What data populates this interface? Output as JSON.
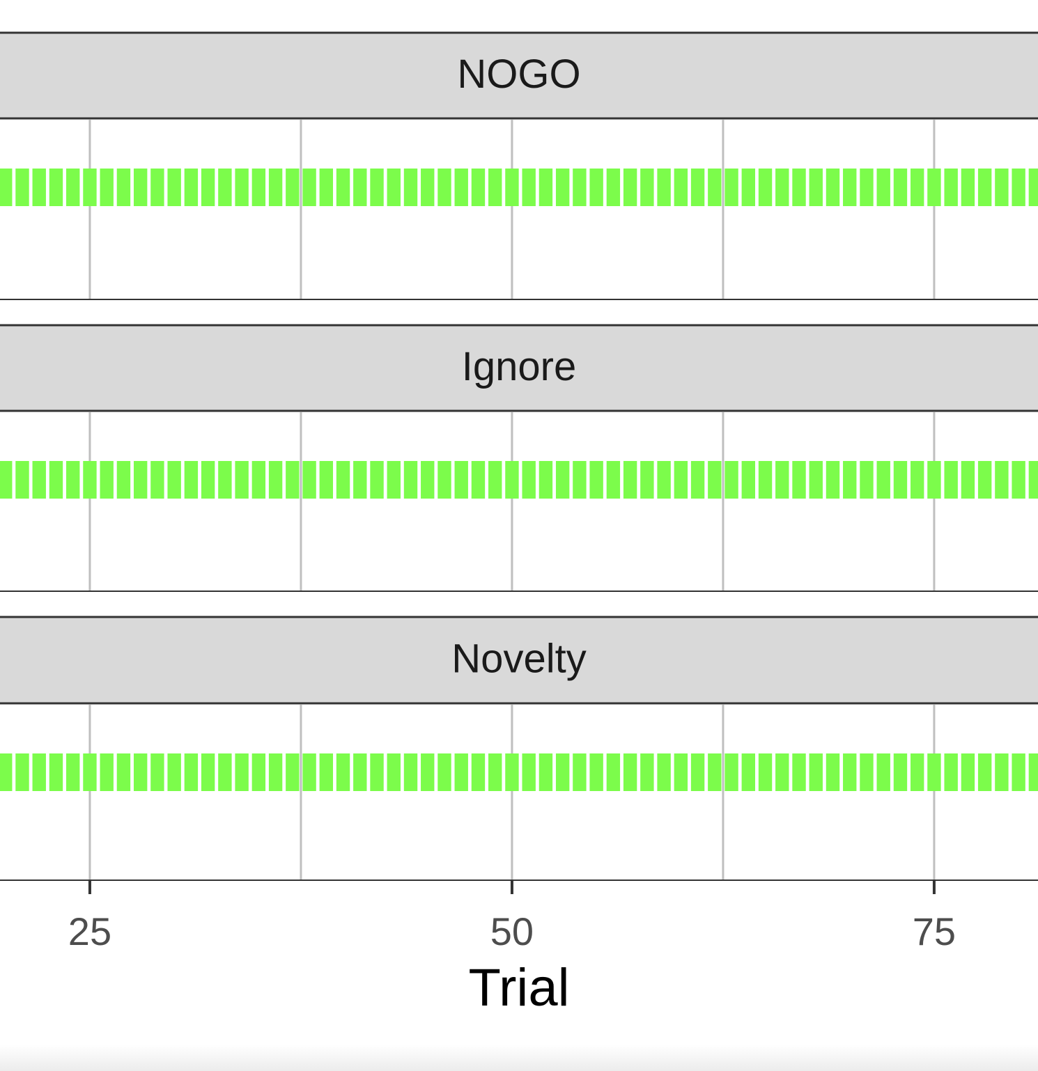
{
  "chart_data": [
    {
      "type": "tile",
      "title": "NOGO",
      "color": "#7cfc4b",
      "x": [
        20,
        21,
        22,
        23,
        24,
        25,
        26,
        27,
        28,
        29,
        30,
        31,
        32,
        33,
        34,
        35,
        36,
        37,
        38,
        39,
        40,
        41,
        42,
        43,
        44,
        45,
        46,
        47,
        48,
        49,
        50,
        51,
        52,
        53,
        54,
        55,
        56,
        57,
        58,
        59,
        60,
        61,
        62,
        63,
        64,
        65,
        66,
        67,
        68,
        69,
        70,
        71,
        72,
        73,
        74,
        75,
        76,
        77,
        78,
        79,
        80,
        81
      ],
      "xlim": [
        19.68,
        81.15
      ],
      "xticks": [
        25,
        50,
        75
      ],
      "xminorticks": [
        37.5,
        62.5
      ],
      "grid": true
    },
    {
      "type": "tile",
      "title": "Ignore",
      "color": "#7cfc4b",
      "x": [
        20,
        21,
        22,
        23,
        24,
        25,
        26,
        27,
        28,
        29,
        30,
        31,
        32,
        33,
        34,
        35,
        36,
        37,
        38,
        39,
        40,
        41,
        42,
        43,
        44,
        45,
        46,
        47,
        48,
        49,
        50,
        51,
        52,
        53,
        54,
        55,
        56,
        57,
        58,
        59,
        60,
        61,
        62,
        63,
        64,
        65,
        66,
        67,
        68,
        69,
        70,
        71,
        72,
        73,
        74,
        75,
        76,
        77,
        78,
        79,
        80,
        81
      ],
      "xlim": [
        19.68,
        81.15
      ],
      "xticks": [
        25,
        50,
        75
      ],
      "xminorticks": [
        37.5,
        62.5
      ],
      "grid": true
    },
    {
      "type": "tile",
      "title": "Novelty",
      "color": "#7cfc4b",
      "xlabel": "Trial",
      "x": [
        20,
        21,
        22,
        23,
        24,
        25,
        26,
        27,
        28,
        29,
        30,
        31,
        32,
        33,
        34,
        35,
        36,
        37,
        38,
        39,
        40,
        41,
        42,
        43,
        44,
        45,
        46,
        47,
        48,
        49,
        50,
        51,
        52,
        53,
        54,
        55,
        56,
        57,
        58,
        59,
        60,
        61,
        62,
        63,
        64,
        65,
        66,
        67,
        68,
        69,
        70,
        71,
        72,
        73,
        74,
        75,
        76,
        77,
        78,
        79,
        80,
        81
      ],
      "xlim": [
        19.68,
        81.15
      ],
      "xticks": [
        25,
        50,
        75
      ],
      "xminorticks": [
        37.5,
        62.5
      ],
      "grid": true
    }
  ]
}
